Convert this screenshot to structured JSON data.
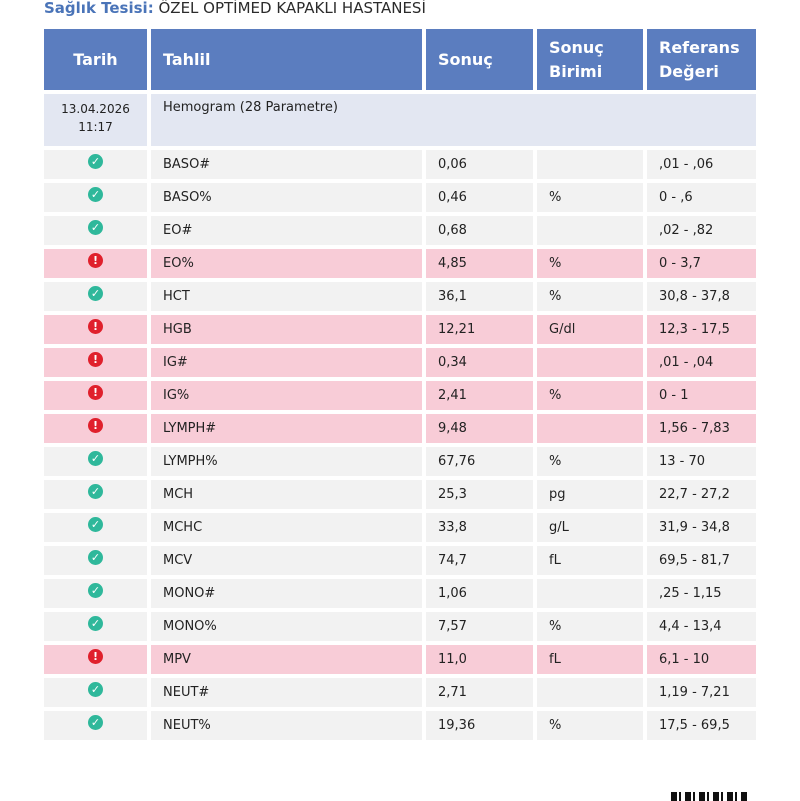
{
  "facility": {
    "label": "Sağlık Tesisi:",
    "name": "ÖZEL OPTİMED KAPAKLI HASTANESİ"
  },
  "table": {
    "headers": [
      "Tarih",
      "Tahlil",
      "Sonuç",
      "Sonuç Birimi",
      "Referans Değeri"
    ],
    "group": {
      "date": "13.04.2026",
      "time": "11:17",
      "name": "Hemogram (28 Parametre)"
    },
    "rows": [
      {
        "status": "normal",
        "test": "BASO#",
        "result": "0,06",
        "unit": "",
        "reference": ",01 - ,06"
      },
      {
        "status": "normal",
        "test": "BASO%",
        "result": "0,46",
        "unit": "%",
        "reference": "0 - ,6"
      },
      {
        "status": "normal",
        "test": "EO#",
        "result": "0,68",
        "unit": "",
        "reference": ",02 - ,82"
      },
      {
        "status": "abnormal",
        "test": "EO%",
        "result": "4,85",
        "unit": "%",
        "reference": "0 - 3,7"
      },
      {
        "status": "normal",
        "test": "HCT",
        "result": "36,1",
        "unit": "%",
        "reference": "30,8 - 37,8"
      },
      {
        "status": "abnormal",
        "test": "HGB",
        "result": "12,21",
        "unit": "G/dl",
        "reference": "12,3 - 17,5"
      },
      {
        "status": "abnormal",
        "test": "IG#",
        "result": "0,34",
        "unit": "",
        "reference": ",01 - ,04"
      },
      {
        "status": "abnormal",
        "test": "IG%",
        "result": "2,41",
        "unit": "%",
        "reference": "0 - 1"
      },
      {
        "status": "abnormal",
        "test": "LYMPH#",
        "result": "9,48",
        "unit": "",
        "reference": "1,56 - 7,83"
      },
      {
        "status": "normal",
        "test": "LYMPH%",
        "result": "67,76",
        "unit": "%",
        "reference": "13 - 70"
      },
      {
        "status": "normal",
        "test": "MCH",
        "result": "25,3",
        "unit": "pg",
        "reference": "22,7 - 27,2"
      },
      {
        "status": "normal",
        "test": "MCHC",
        "result": "33,8",
        "unit": "g/L",
        "reference": "31,9 - 34,8"
      },
      {
        "status": "normal",
        "test": "MCV",
        "result": "74,7",
        "unit": "fL",
        "reference": "69,5 - 81,7"
      },
      {
        "status": "normal",
        "test": "MONO#",
        "result": "1,06",
        "unit": "",
        "reference": ",25 - 1,15"
      },
      {
        "status": "normal",
        "test": "MONO%",
        "result": "7,57",
        "unit": "%",
        "reference": "4,4 - 13,4"
      },
      {
        "status": "abnormal",
        "test": "MPV",
        "result": "11,0",
        "unit": "fL",
        "reference": "6,1 - 10"
      },
      {
        "status": "normal",
        "test": "NEUT#",
        "result": "2,71",
        "unit": "",
        "reference": "1,19 - 7,21"
      },
      {
        "status": "normal",
        "test": "NEUT%",
        "result": "19,36",
        "unit": "%",
        "reference": "17,5 - 69,5"
      }
    ]
  },
  "icons": {
    "normal": "check-circle-icon",
    "abnormal": "exclamation-circle-icon"
  },
  "colors": {
    "header": "#5b7dbf",
    "abnormal_row": "#f8ccd7",
    "normal_icon": "#2fb89b",
    "abnormal_icon": "#e0202c"
  }
}
